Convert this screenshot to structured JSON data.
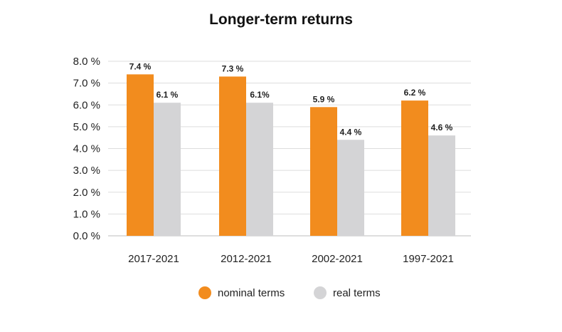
{
  "chart_data": {
    "type": "bar",
    "title": "Longer-term returns",
    "categories": [
      "2017-2021",
      "2012-2021",
      "2002-2021",
      "1997-2021"
    ],
    "series": [
      {
        "name": "nominal terms",
        "color": "#f28c1e",
        "values": [
          7.4,
          7.3,
          5.9,
          6.2
        ],
        "labels": [
          "7.4 %",
          "7.3 %",
          "5.9 %",
          "6.2 %"
        ]
      },
      {
        "name": "real terms",
        "color": "#d4d4d6",
        "values": [
          6.1,
          6.1,
          4.4,
          4.6
        ],
        "labels": [
          "6.1 %",
          "6.1%",
          "4.4 %",
          "4.6 %"
        ]
      }
    ],
    "ylim": [
      0,
      8
    ],
    "yticks": [
      0,
      1,
      2,
      3,
      4,
      5,
      6,
      7,
      8
    ],
    "ytick_labels": [
      "0.0 %",
      "1.0 %",
      "2.0 %",
      "3.0 %",
      "4.0 %",
      "5.0 %",
      "6.0 %",
      "7.0 %",
      "8.0 %"
    ],
    "grid": true,
    "legend_position": "bottom"
  }
}
